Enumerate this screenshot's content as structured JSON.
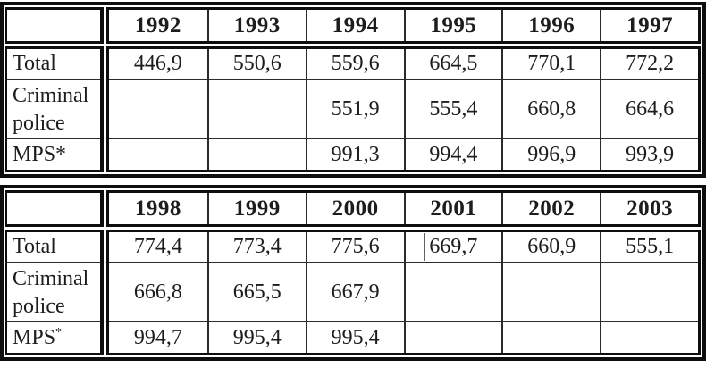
{
  "theme": {
    "paper": "#ffffff",
    "ink": "#1d1d1d",
    "line_heavy": "#0e0e0e",
    "line_light": "#2b2b2b",
    "artifact_gray": "#636363"
  },
  "tables": [
    {
      "name": "table-1992-1997",
      "corner_label": "",
      "years": [
        "1992",
        "1993",
        "1994",
        "1995",
        "1996",
        "1997"
      ],
      "rows": [
        {
          "label": "Total",
          "values": [
            "446,9",
            "550,6",
            "559,6",
            "664,5",
            "770,1",
            "772,2"
          ]
        },
        {
          "label": "Criminal police",
          "values": [
            "",
            "",
            "551,9",
            "555,4",
            "660,8",
            "664,6"
          ]
        },
        {
          "label": "MPS*",
          "values": [
            "",
            "",
            "991,3",
            "994,4",
            "996,9",
            "993,9"
          ]
        }
      ]
    },
    {
      "name": "table-1998-2003",
      "corner_label": "",
      "years": [
        "1998",
        "1999",
        "2000",
        "2001",
        "2002",
        "2003"
      ],
      "rows": [
        {
          "label": "Total",
          "values": [
            "774,4",
            "773,4",
            "775,6",
            "669,7",
            "660,9",
            "555,1"
          ]
        },
        {
          "label": "Criminal police",
          "values": [
            "666,8",
            "665,5",
            "667,9",
            "",
            "",
            ""
          ]
        },
        {
          "label": "MPS",
          "label_sup": "*",
          "values": [
            "994,7",
            "995,4",
            "995,4",
            "",
            "",
            ""
          ]
        }
      ]
    }
  ],
  "artifact": {
    "table_index": 1,
    "row_index": 0,
    "col_index": 3,
    "description": "faint vertical scan mark left of value 669,7"
  }
}
